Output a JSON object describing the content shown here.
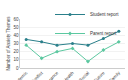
{
  "chart_data": {
    "type": "line",
    "y_label": "Number of Anxiety Themes",
    "categories": [
      "Academic",
      "Conflict",
      "Appearance",
      "Health",
      "Social",
      "Future",
      "Family"
    ],
    "series": [
      {
        "name": "Student report",
        "color": "#2a7f8a",
        "marker": "circle",
        "values": [
          35,
          32,
          28,
          30,
          28,
          36,
          45
        ]
      },
      {
        "name": "Parent report",
        "color": "#5cc8a0",
        "marker": "diamond",
        "values": [
          28,
          12,
          20,
          24,
          8,
          22,
          32
        ]
      }
    ],
    "ylim": [
      0,
      60
    ],
    "yticks": [
      0,
      10,
      20,
      30,
      40,
      50,
      60
    ],
    "grid": true,
    "legend": "top"
  }
}
